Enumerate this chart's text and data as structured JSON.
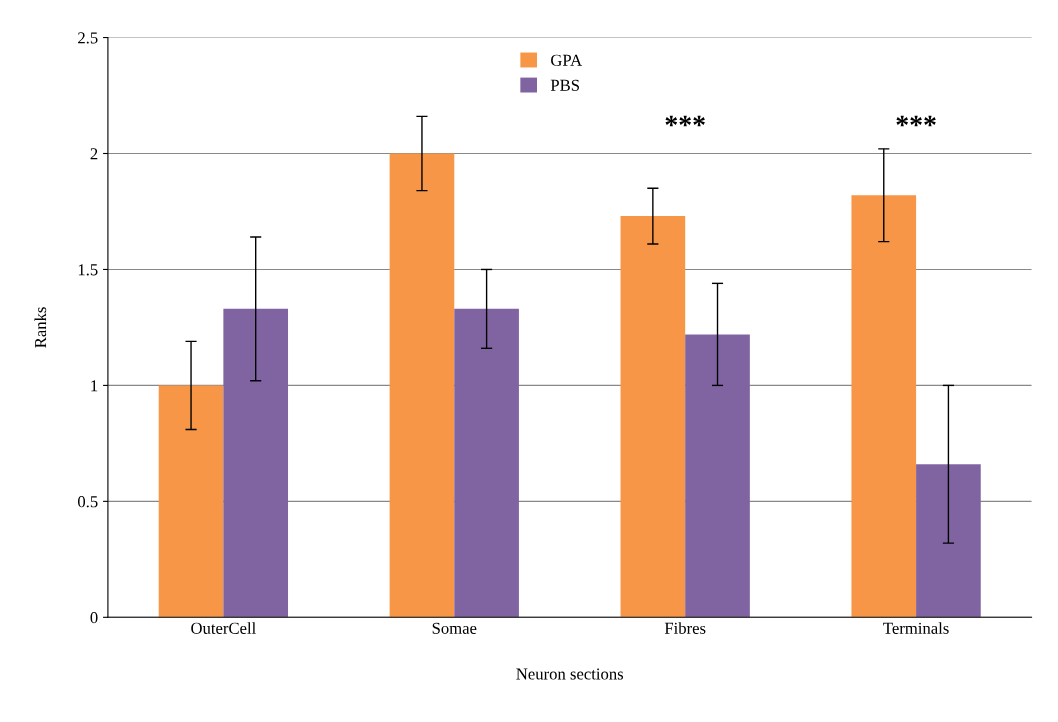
{
  "chart_data": {
    "type": "bar",
    "xlabel": "Neuron sections",
    "ylabel": "Ranks",
    "categories": [
      "OuterCell",
      "Somae",
      "Fibres",
      "Terminals"
    ],
    "series": [
      {
        "name": "GPA",
        "color": "#f79646",
        "values": [
          1.0,
          2.0,
          1.73,
          1.82
        ],
        "errors": [
          0.19,
          0.16,
          0.12,
          0.2
        ]
      },
      {
        "name": "PBS",
        "color": "#8064a2",
        "values": [
          1.33,
          1.33,
          1.22,
          0.66
        ],
        "errors": [
          0.31,
          0.17,
          0.22,
          0.34
        ]
      }
    ],
    "ylim": [
      0,
      2.5
    ],
    "yticks": [
      0,
      0.5,
      1,
      1.5,
      2,
      2.5
    ],
    "grid": "y",
    "legend": "top",
    "annotations": [
      "***",
      "***"
    ]
  }
}
